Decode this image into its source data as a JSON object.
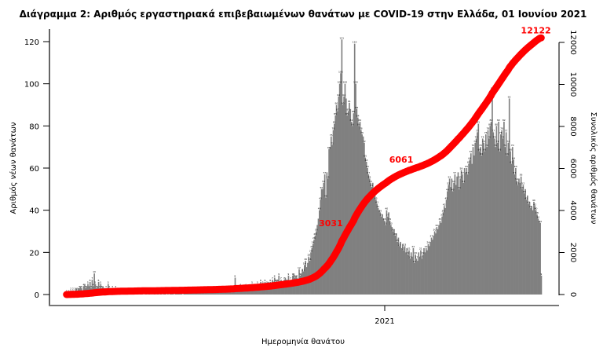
{
  "chart_data": {
    "type": "bar",
    "title": "Διάγραμμα 2: Αριθμός εργαστηριακά επιβεβαιωμένων θανάτων με COVID-19 στην Ελλάδα, 01 Ιουνίου 2021",
    "xlabel": "Ημερομηνία θανάτου",
    "ylabel": "Αριθμός νέων θανάτων",
    "y2label": "Συνολικός αριθμός θανάτων",
    "x_tick_labels": [
      "2021"
    ],
    "yticks": [
      "0",
      "20",
      "40",
      "60",
      "80",
      "100",
      "120"
    ],
    "y2ticks": [
      "0",
      "2000",
      "4000",
      "6000",
      "8000",
      "10000",
      "12000"
    ],
    "ylim": [
      0,
      120
    ],
    "y2lim": [
      0,
      12000
    ],
    "grid": false,
    "bar_color": "#808080",
    "line_color": "#ff0000",
    "series": [
      {
        "type": "bar",
        "values": [
          1,
          0,
          1,
          1,
          2,
          1,
          2,
          1,
          2,
          3,
          2,
          3,
          3,
          4,
          3,
          2,
          4,
          5,
          3,
          4,
          5,
          4,
          6,
          3,
          7,
          4,
          10,
          5,
          3,
          4,
          6,
          3,
          5,
          3,
          4,
          2,
          3,
          3,
          2,
          5,
          3,
          2,
          1,
          3,
          2,
          1,
          3,
          2,
          1,
          2,
          1,
          1,
          2,
          1,
          0,
          1,
          0,
          2,
          1,
          1,
          1,
          1,
          0,
          0,
          1,
          1,
          2,
          1,
          0,
          1,
          1,
          1,
          0,
          0,
          1,
          1,
          0,
          1,
          1,
          0,
          1,
          0,
          1,
          1,
          0,
          1,
          1,
          0,
          2,
          1,
          0,
          1,
          1,
          1,
          0,
          1,
          0,
          1,
          1,
          1,
          1,
          0,
          1,
          1,
          1,
          2,
          1,
          1,
          1,
          0,
          1,
          1,
          1,
          2,
          1,
          1,
          1,
          1,
          2,
          1,
          1,
          1,
          2,
          1,
          2,
          1,
          1,
          1,
          2,
          1,
          1,
          1,
          2,
          1,
          1,
          1,
          2,
          1,
          1,
          1,
          2,
          1,
          1,
          2,
          2,
          1,
          3,
          1,
          2,
          1,
          2,
          1,
          3,
          2,
          3,
          1,
          3,
          2,
          8,
          3,
          2,
          3,
          3,
          4,
          2,
          3,
          3,
          2,
          4,
          3,
          3,
          4,
          3,
          2,
          5,
          3,
          4,
          4,
          3,
          5,
          3,
          4,
          6,
          3,
          5,
          4,
          6,
          3,
          5,
          6,
          4,
          6,
          5,
          7,
          5,
          8,
          6,
          7,
          6,
          9,
          5,
          7,
          6,
          4,
          7,
          8,
          6,
          7,
          9,
          5,
          7,
          6,
          9,
          10,
          8,
          9,
          8,
          7,
          12,
          9,
          10,
          12,
          11,
          14,
          16,
          13,
          15,
          18,
          16,
          20,
          22,
          24,
          26,
          28,
          30,
          33,
          36,
          40,
          45,
          50,
          50,
          53,
          57,
          46,
          58,
          55,
          69,
          70,
          75,
          71,
          78,
          81,
          85,
          90,
          87,
          94,
          100,
          105,
          121,
          90,
          94,
          100,
          93,
          85,
          87,
          91,
          88,
          82,
          80,
          86,
          119,
          100,
          88,
          84,
          80,
          82,
          78,
          76,
          75,
          72,
          65,
          63,
          60,
          57,
          55,
          53,
          51,
          53,
          49,
          47,
          45,
          43,
          41,
          40,
          39,
          37,
          38,
          36,
          35,
          33,
          40,
          37,
          39,
          35,
          33,
          32,
          30,
          31,
          28,
          29,
          25,
          27,
          23,
          25,
          22,
          24,
          21,
          23,
          20,
          22,
          19,
          21,
          17,
          20,
          18,
          22,
          15,
          19,
          17,
          16,
          20,
          18,
          21,
          17,
          19,
          22,
          20,
          22,
          21,
          24,
          23,
          25,
          27,
          26,
          28,
          30,
          29,
          32,
          31,
          33,
          35,
          34,
          37,
          39,
          42,
          41,
          45,
          49,
          52,
          55,
          51,
          55,
          49,
          53,
          57,
          52,
          56,
          58,
          50,
          55,
          59,
          57,
          53,
          60,
          58,
          60,
          57,
          62,
          64,
          67,
          62,
          70,
          66,
          72,
          74,
          77,
          81,
          68,
          70,
          66,
          74,
          72,
          68,
          76,
          70,
          78,
          74,
          80,
          82,
          97,
          77,
          74,
          70,
          80,
          72,
          82,
          68,
          76,
          78,
          74,
          82,
          70,
          77,
          66,
          72,
          93,
          68,
          62,
          70,
          64,
          57,
          60,
          54,
          52,
          55,
          53,
          56,
          50,
          52,
          48,
          50,
          45,
          47,
          43,
          44,
          41,
          42,
          40,
          44,
          42,
          40,
          38,
          36,
          35,
          34,
          9
        ]
      },
      {
        "type": "line",
        "axis": "right",
        "cumulative_of_bars": true
      }
    ],
    "annotations": [
      "3031",
      "6061",
      "12122"
    ]
  }
}
